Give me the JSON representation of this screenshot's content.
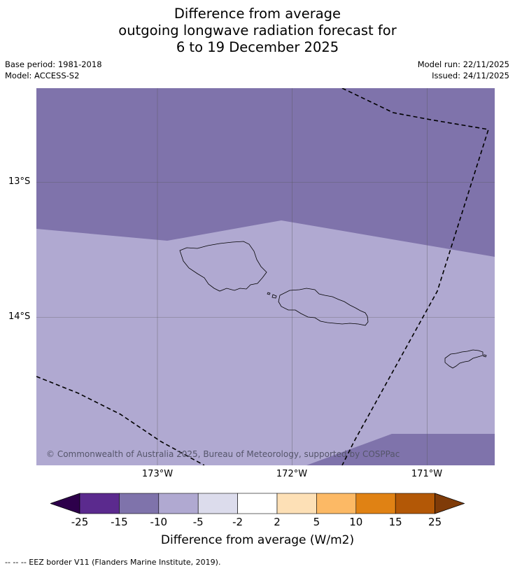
{
  "title": {
    "line1": "Difference from average",
    "line2": "outgoing longwave radiation forecast for",
    "line3": "6 to 19 December 2025"
  },
  "meta": {
    "base_period": "Base period: 1981-2018",
    "model": "Model: ACCESS-S2",
    "model_run": "Model run: 22/11/2025",
    "issued": "Issued: 24/11/2025"
  },
  "map": {
    "lat_labels": [
      "13°S",
      "14°S"
    ],
    "lon_labels": [
      "173°W",
      "172°W",
      "171°W"
    ],
    "copyright": "© Commonwealth of Australia 2025, Bureau of Meteorology, supported by COSPPac",
    "regions": [
      {
        "category": "-15 to -10",
        "color": "#7f73ab"
      },
      {
        "category": "-10 to -5",
        "color": "#b0a9d1"
      }
    ],
    "islands": [
      "Savai'i",
      "Upolu",
      "Tutuila"
    ],
    "eez_line_style": "dashed"
  },
  "colorbar": {
    "title": "Difference from average (W/m2)",
    "labels": [
      "-25",
      "-15",
      "-10",
      "-5",
      "-2",
      "2",
      "5",
      "10",
      "15",
      "25"
    ],
    "colors": [
      "#5b2a8e",
      "#7f73ab",
      "#b0a9d1",
      "#dcdcec",
      "#ffffff",
      "#fde0b6",
      "#fcb965",
      "#e08214",
      "#b35806"
    ],
    "under_color": "#2d004b",
    "over_color": "#7f3b08"
  },
  "legend_note": "--  --  -- EEZ border V11 (Flanders Marine Institute, 2019)."
}
